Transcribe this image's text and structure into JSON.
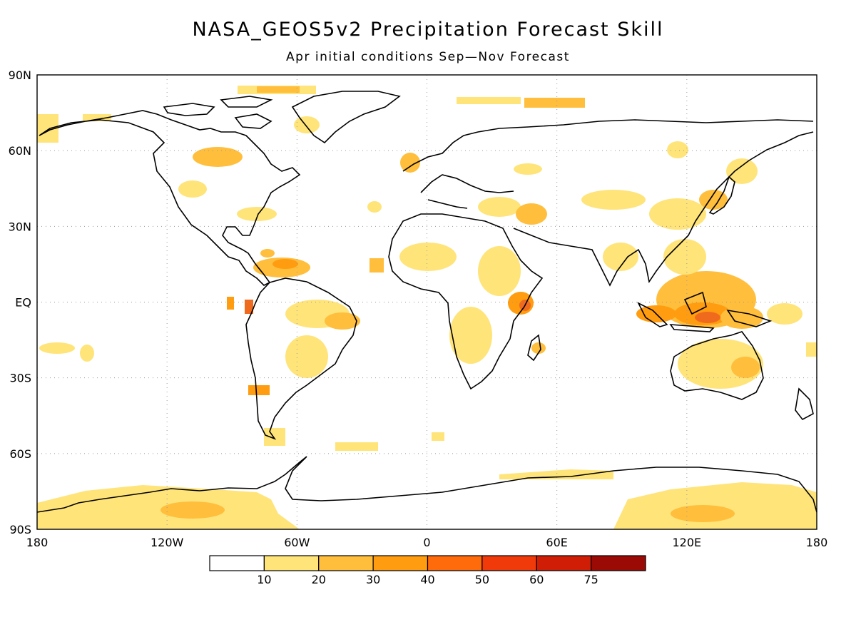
{
  "title": "NASA_GEOS5v2 Precipitation Forecast Skill",
  "subtitle": "Apr initial conditions   Sep—Nov Forecast",
  "lat_labels": [
    "90N",
    "60N",
    "30N",
    "EQ",
    "30S",
    "60S",
    "90S"
  ],
  "lat_values": [
    90,
    60,
    30,
    0,
    -30,
    -60,
    -90
  ],
  "lon_labels": [
    "180",
    "120W",
    "60W",
    "0",
    "60E",
    "120E",
    "180"
  ],
  "lon_values": [
    -180,
    -120,
    -60,
    0,
    60,
    120,
    180
  ],
  "colorbar": {
    "labels": [
      "10",
      "20",
      "30",
      "40",
      "50",
      "60",
      "75"
    ],
    "colors": [
      "#ffffff",
      "#ffe47a",
      "#ffbe3c",
      "#ff9c0f",
      "#ff6a0a",
      "#f03a0a",
      "#d01e06",
      "#9c0a06"
    ]
  },
  "map_colors": {
    "level1": "#ffe47a",
    "level2": "#ffbe3c",
    "level3": "#ff9c0f",
    "level4": "#f06a1e",
    "coast": "#000000",
    "grid": "#9a9a9a"
  }
}
